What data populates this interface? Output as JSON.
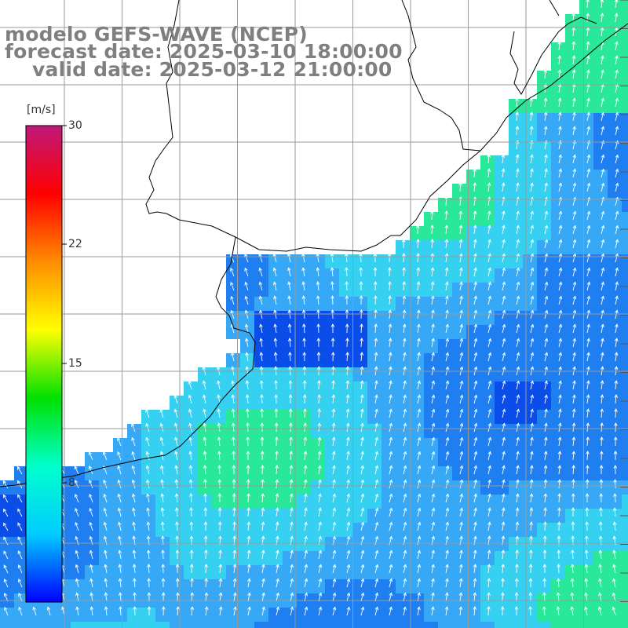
{
  "title": {
    "model": "modelo GEFS-WAVE (NCEP)",
    "forecast": "forecast date: 2025-03-10 18:00:00",
    "valid": "valid date: 2025-03-12 21:00:00"
  },
  "colorbar": {
    "units": "[m/s]",
    "ticks": [
      "30",
      "22",
      "15",
      "8"
    ],
    "min": 0,
    "max": 30,
    "colors": [
      "#0000ff",
      "#00ccff",
      "#00ffcc",
      "#00e000",
      "#ffff00",
      "#ff8c00",
      "#ff0000",
      "#c0187a"
    ]
  },
  "map": {
    "field": "wind speed and direction",
    "wind_direction_general": "from south-east",
    "ocean_colors": [
      "#0b4de8",
      "#1f7ff0",
      "#36a8f5",
      "#36d0f0",
      "#2ae89a"
    ],
    "land_color": "#ffffff",
    "coastline_color": "#000000",
    "grid_color": "#9a9a9a",
    "arrow_color": "#ffffff"
  }
}
